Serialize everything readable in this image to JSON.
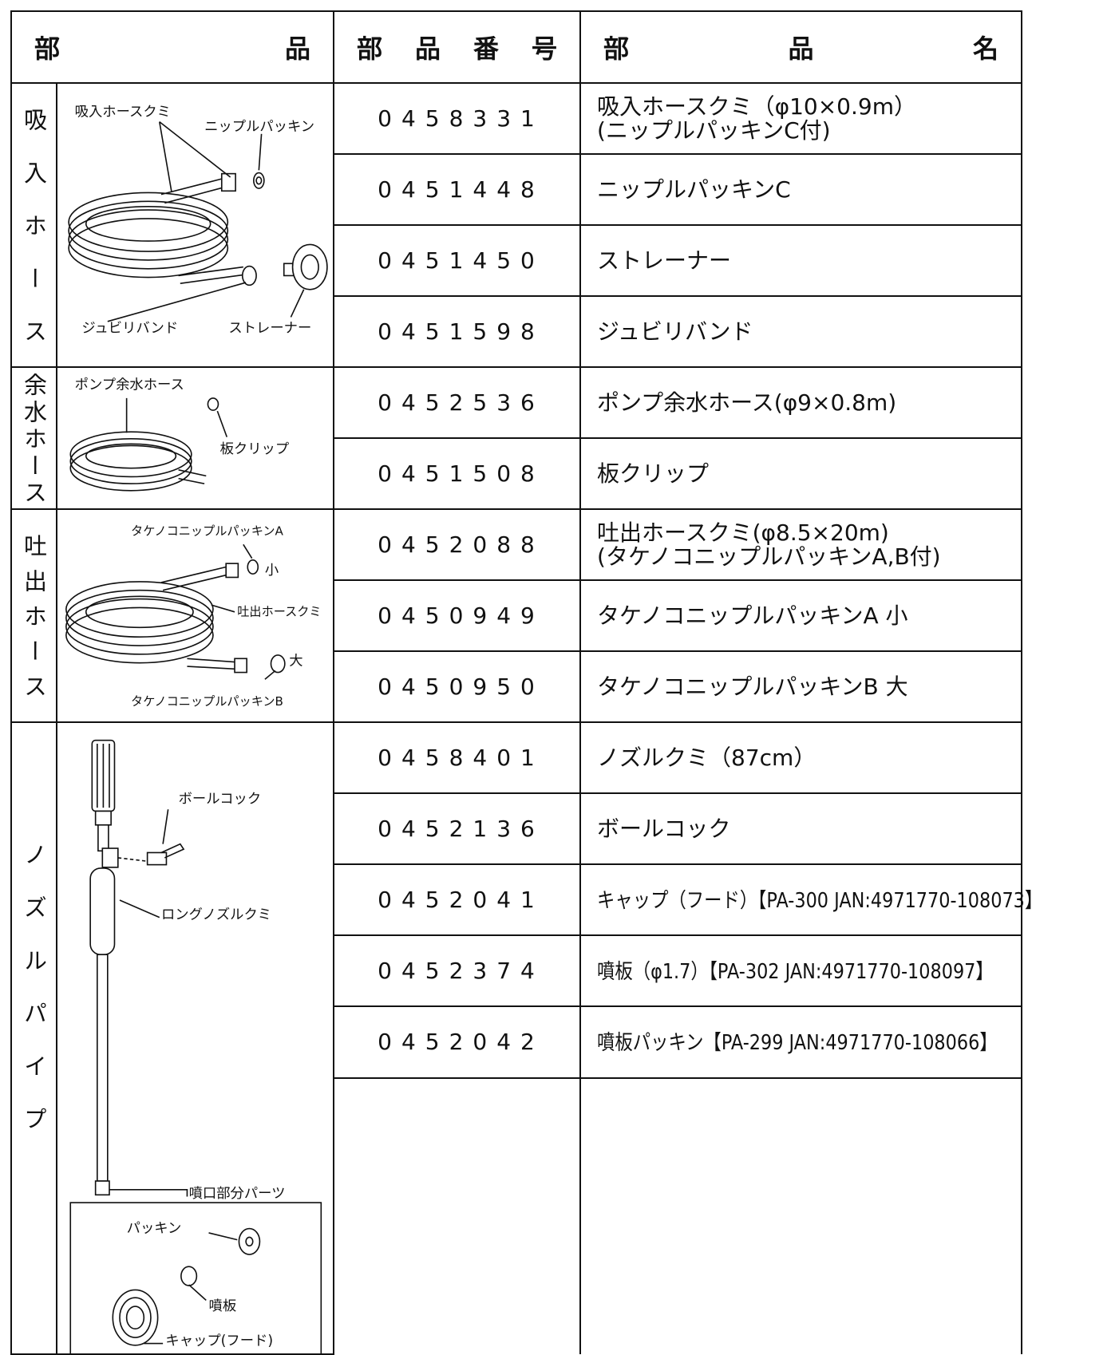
{
  "header": {
    "part": "部品",
    "number": "部品番号",
    "name": "部品名"
  },
  "groups": [
    {
      "label": "吸入ホース",
      "callouts": [
        "吸入ホースクミ",
        "ニップルパッキン",
        "ジュビリバンド",
        "ストレーナー"
      ],
      "rows": [
        {
          "number": "0458331",
          "name": [
            "吸入ホースクミ（φ10×0.9m）",
            "(ニップルパッキンC付)"
          ]
        },
        {
          "number": "0451448",
          "name": [
            "ニップルパッキンC"
          ]
        },
        {
          "number": "0451450",
          "name": [
            "ストレーナー"
          ]
        },
        {
          "number": "0451598",
          "name": [
            "ジュビリバンド"
          ]
        }
      ]
    },
    {
      "label": "余水ホース",
      "callouts": [
        "ポンプ余水ホース",
        "板クリップ"
      ],
      "rows": [
        {
          "number": "0452536",
          "name": [
            "ポンプ余水ホース(φ9×0.8m)"
          ]
        },
        {
          "number": "0451508",
          "name": [
            "板クリップ"
          ]
        }
      ]
    },
    {
      "label": "吐出ホース",
      "callouts": [
        "タケノコニップルパッキンA",
        "小",
        "吐出ホースクミ",
        "大",
        "タケノコニップルパッキンB"
      ],
      "rows": [
        {
          "number": "0452088",
          "name": [
            "吐出ホースクミ(φ8.5×20m)",
            "(タケノコニップルパッキンA,B付)"
          ]
        },
        {
          "number": "0450949",
          "name": [
            "タケノコニップルパッキンA 小"
          ]
        },
        {
          "number": "0450950",
          "name": [
            "タケノコニップルパッキンB 大"
          ]
        }
      ]
    },
    {
      "label": "ノズルパイプ",
      "callouts": [
        "ボールコック",
        "ロングノズルクミ",
        "噴口部分パーツ",
        "パッキン",
        "噴板",
        "キャップ(フード)"
      ],
      "rows": [
        {
          "number": "0458401",
          "name": [
            "ノズルクミ（87cm）"
          ]
        },
        {
          "number": "0452136",
          "name": [
            "ボールコック"
          ]
        },
        {
          "number": "0452041",
          "name": [
            "キャップ（フード）【PA-300 JAN:4971770-108073】"
          ]
        },
        {
          "number": "0452374",
          "name": [
            "噴板（φ1.7）【PA-302 JAN:4971770-108097】"
          ]
        },
        {
          "number": "0452042",
          "name": [
            "噴板パッキン【PA-299 JAN:4971770-108066】"
          ]
        }
      ]
    }
  ]
}
